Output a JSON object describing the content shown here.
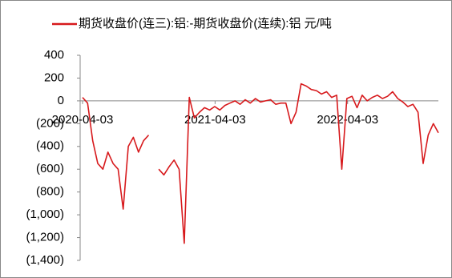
{
  "chart_data": {
    "type": "line",
    "legend_label": "期货收盘价(连三):铝:-期货收盘价(连续):铝 元/吨",
    "color": "#d7191c",
    "negative_tick_color": "#e00000",
    "x": [
      "2020-04-03",
      "2020-04-17",
      "2020-05-01",
      "2020-05-15",
      "2020-05-29",
      "2020-06-12",
      "2020-06-26",
      "2020-07-10",
      "2020-07-24",
      "2020-08-07",
      "2020-08-21",
      "2020-09-04",
      "2020-09-18",
      "2020-10-02",
      "2020-10-16",
      "2020-10-30",
      "2020-11-13",
      "2020-11-27",
      "2020-12-11",
      "2020-12-25",
      "2021-01-08",
      "2021-01-22",
      "2021-02-05",
      "2021-02-19",
      "2021-03-05",
      "2021-03-19",
      "2021-04-02",
      "2021-04-16",
      "2021-04-30",
      "2021-05-14",
      "2021-05-28",
      "2021-06-11",
      "2021-06-25",
      "2021-07-09",
      "2021-07-23",
      "2021-08-06",
      "2021-08-20",
      "2021-09-03",
      "2021-09-17",
      "2021-10-01",
      "2021-10-15",
      "2021-10-29",
      "2021-11-12",
      "2021-11-26",
      "2021-12-10",
      "2021-12-24",
      "2022-01-07",
      "2022-01-21",
      "2022-02-04",
      "2022-02-18",
      "2022-03-04",
      "2022-03-18",
      "2022-04-01",
      "2022-04-15",
      "2022-04-29",
      "2022-05-13",
      "2022-05-27",
      "2022-06-10",
      "2022-06-24",
      "2022-07-08",
      "2022-07-22",
      "2022-08-05",
      "2022-08-19",
      "2022-09-02",
      "2022-09-16",
      "2022-09-30",
      "2022-10-14",
      "2022-10-28",
      "2022-11-11",
      "2022-11-25",
      "2022-12-09"
    ],
    "values": [
      30,
      -20,
      -350,
      -550,
      -600,
      -450,
      -550,
      -600,
      -950,
      -400,
      -320,
      -450,
      -350,
      -300,
      null,
      -600,
      -650,
      -580,
      -520,
      -600,
      -1250,
      30,
      -150,
      -100,
      -60,
      -80,
      -50,
      -80,
      -40,
      -20,
      0,
      -30,
      10,
      -20,
      20,
      -10,
      0,
      10,
      -30,
      -20,
      -20,
      -200,
      -100,
      150,
      130,
      100,
      90,
      60,
      80,
      30,
      50,
      -600,
      20,
      40,
      -60,
      50,
      0,
      30,
      50,
      20,
      40,
      80,
      20,
      -10,
      -50,
      -30,
      -100,
      -550,
      -300,
      -200,
      -280
    ],
    "xlim": [
      "2020-04-03",
      "2022-12-09"
    ],
    "xticks": [
      "2020-04-03",
      "2021-04-03",
      "2022-04-03"
    ],
    "ylim": [
      -1400,
      400
    ],
    "yticks": [
      400,
      200,
      0,
      {
        "value": -200,
        "label": "(200)"
      },
      {
        "value": -400,
        "label": "(400)"
      },
      {
        "value": -600,
        "label": "(600)"
      },
      {
        "value": -800,
        "label": "(800)"
      },
      {
        "value": -1000,
        "label": "(1,000)"
      },
      {
        "value": -1200,
        "label": "(1,200)"
      },
      {
        "value": -1400,
        "label": "(1,400)"
      }
    ]
  }
}
